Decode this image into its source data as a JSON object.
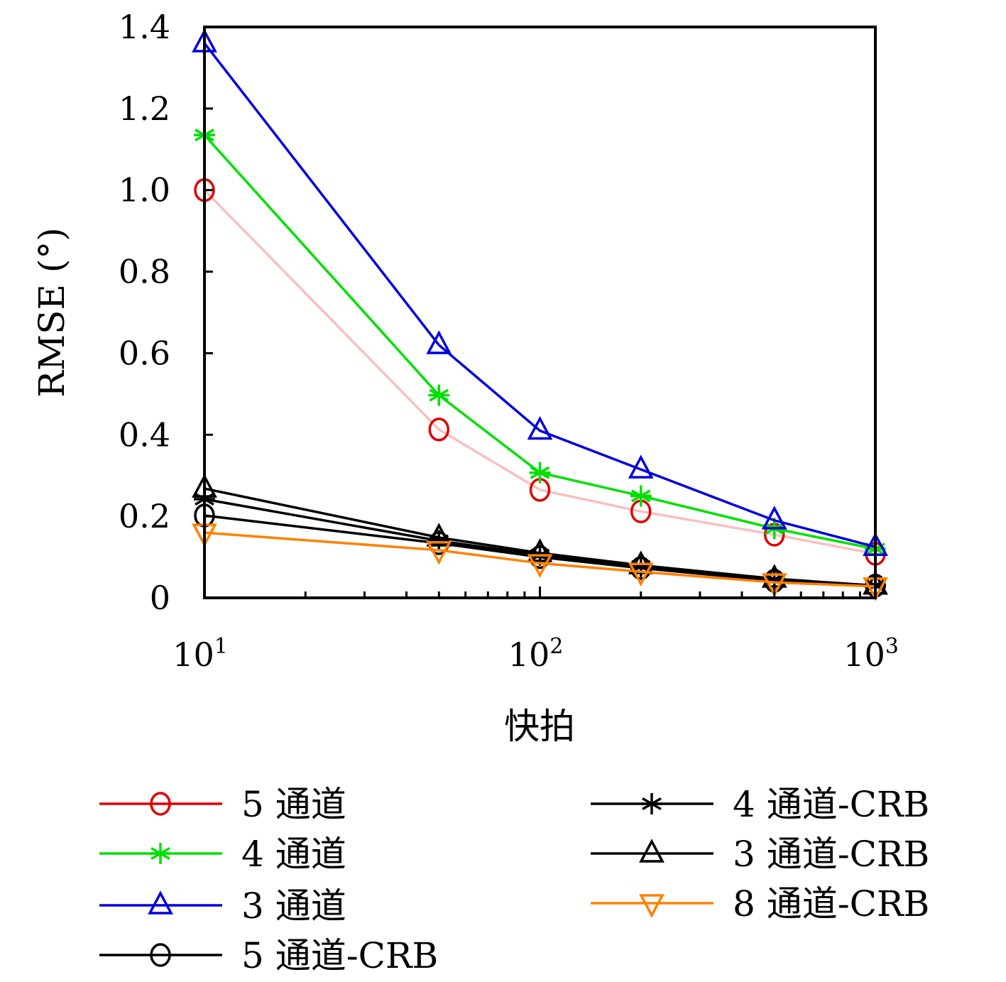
{
  "chart_data": {
    "type": "line",
    "title": "",
    "xlabel": "快拍",
    "ylabel": "RMSE (°)",
    "xscale": "log",
    "xlim": [
      10,
      1000
    ],
    "ylim": [
      0,
      1.4
    ],
    "grid": false,
    "legend_placement": "bottom",
    "x_ticks": [
      10,
      100,
      1000
    ],
    "x_tick_labels": [
      {
        "base": "10",
        "exp": "1"
      },
      {
        "base": "10",
        "exp": "2"
      },
      {
        "base": "10",
        "exp": "3"
      }
    ],
    "y_ticks": [
      0,
      0.2,
      0.4,
      0.6,
      0.8,
      1.0,
      1.2,
      1.4
    ],
    "y_tick_labels": [
      "0",
      "0.2",
      "0.4",
      "0.6",
      "0.8",
      "1.0",
      "1.2",
      "1.4"
    ],
    "x": [
      10,
      50,
      100,
      200,
      500,
      1000
    ],
    "series": [
      {
        "name": "5 通道",
        "line_color": "#f8c0c0",
        "legend_line_color": "#e00000",
        "marker_color": "#e00000",
        "marker": "circle",
        "values": [
          1.0,
          0.413,
          0.265,
          0.212,
          0.155,
          0.108
        ]
      },
      {
        "name": "4 通道",
        "line_color": "#00e000",
        "legend_line_color": "#00e000",
        "marker_color": "#00e000",
        "marker": "asterisk",
        "values": [
          1.135,
          0.497,
          0.307,
          0.25,
          0.17,
          0.12
        ]
      },
      {
        "name": "3 通道",
        "line_color": "#0000e0",
        "legend_line_color": "#0000e0",
        "marker_color": "#0000e0",
        "marker": "triangle-up",
        "values": [
          1.36,
          0.62,
          0.41,
          0.315,
          0.19,
          0.125
        ]
      },
      {
        "name": "5 通道-CRB",
        "line_color": "#000000",
        "legend_line_color": "#000000",
        "marker_color": "#000000",
        "marker": "circle",
        "values": [
          0.202,
          0.134,
          0.1,
          0.073,
          0.042,
          0.03
        ]
      },
      {
        "name": "4 通道-CRB",
        "line_color": "#000000",
        "legend_line_color": "#000000",
        "marker_color": "#000000",
        "marker": "asterisk",
        "values": [
          0.242,
          0.14,
          0.105,
          0.077,
          0.045,
          0.03
        ]
      },
      {
        "name": "3 通道-CRB",
        "line_color": "#000000",
        "legend_line_color": "#000000",
        "marker_color": "#000000",
        "marker": "triangle-up",
        "values": [
          0.268,
          0.148,
          0.11,
          0.08,
          0.047,
          0.03
        ]
      },
      {
        "name": "8 通道-CRB",
        "line_color": "#ff8000",
        "legend_line_color": "#ff8000",
        "marker_color": "#ff8000",
        "marker": "triangle-down",
        "values": [
          0.16,
          0.117,
          0.085,
          0.064,
          0.038,
          0.028
        ]
      }
    ]
  }
}
